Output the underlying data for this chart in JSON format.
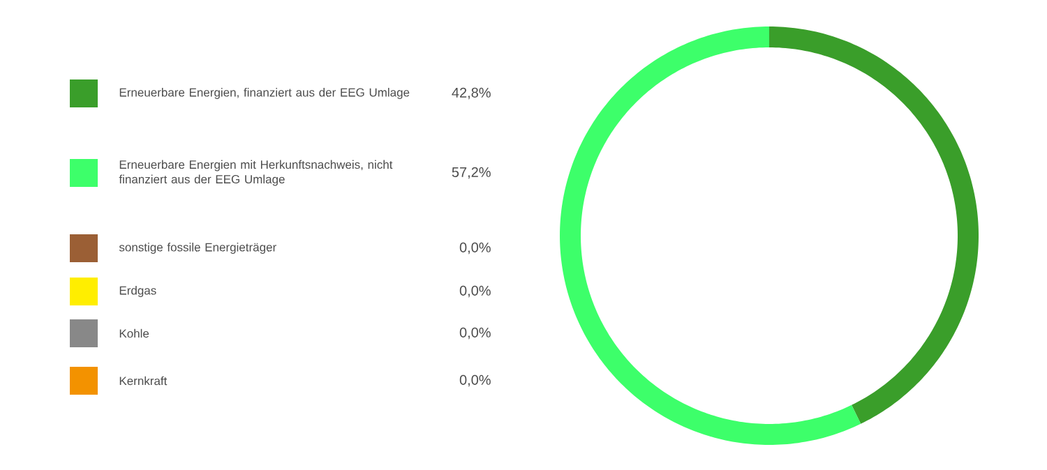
{
  "chart_data": {
    "type": "donut",
    "categories": [
      "Erneuerbare Energien, finanziert aus der EEG Umlage",
      "Erneuerbare Energien mit Herkunftsnachweis, nicht finanziert aus der EEG Umlage",
      "sonstige fossile Energieträger",
      "Erdgas",
      "Kohle",
      "Kernkraft"
    ],
    "values": [
      42.8,
      57.2,
      0,
      0,
      0,
      0
    ],
    "value_labels": [
      "42,8%",
      "57,2%",
      "0,0%",
      "0,0%",
      "0,0%",
      "0,0%"
    ],
    "colors": [
      "#3a9e2a",
      "#3dff6a",
      "#9b5f35",
      "#ffee00",
      "#888888",
      "#f39200"
    ],
    "legend": "left"
  }
}
